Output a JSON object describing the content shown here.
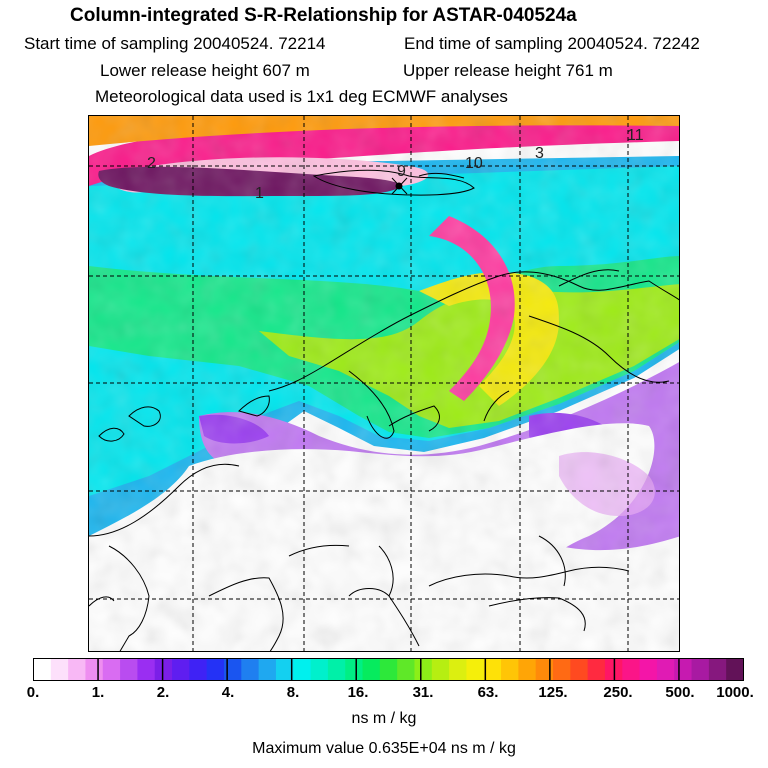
{
  "title": "Column-integrated S-R-Relationship for ASTAR-040524a",
  "info": {
    "start_time": "Start time of sampling 20040524. 72214",
    "end_time": "End time of sampling 20040524. 72242",
    "lower_height": "Lower release height  607 m",
    "upper_height": "Upper release height  761 m",
    "met_data": "Meteorological data used is 1x1 deg ECMWF analyses"
  },
  "map": {
    "contour_labels": [
      "2",
      "1",
      "9",
      "10",
      "3",
      "11"
    ]
  },
  "legend": {
    "tick_labels": [
      "0.",
      "1.",
      "2.",
      "4.",
      "8.",
      "16.",
      "31.",
      "63.",
      "125.",
      "250.",
      "500.",
      "1000."
    ],
    "colors": [
      "#ffffff",
      "#fde0fb",
      "#f8b8f5",
      "#ee8ef0",
      "#d96cf2",
      "#b94cf0",
      "#9a2ef2",
      "#7b1fe8",
      "#5f1ef0",
      "#3f22f5",
      "#2432f6",
      "#1a55f0",
      "#1f7ff0",
      "#1fa8f0",
      "#14d0f0",
      "#00f0ee",
      "#00f0cc",
      "#00f0a8",
      "#00ef84",
      "#06eb5e",
      "#2de83a",
      "#5fe828",
      "#8cef18",
      "#b6ee12",
      "#dcef10",
      "#f5ef0a",
      "#fee108",
      "#ffc506",
      "#ffa506",
      "#ff8a0a",
      "#ff6a14",
      "#ff4a20",
      "#ff2a40",
      "#ff1666",
      "#fb1588",
      "#f415a8",
      "#e01bb4",
      "#c61ab0",
      "#a81aa2",
      "#86187e",
      "#621258"
    ],
    "units": "ns m / kg"
  },
  "footer": {
    "max_value": "Maximum value  0.635E+04 ns m / kg"
  }
}
